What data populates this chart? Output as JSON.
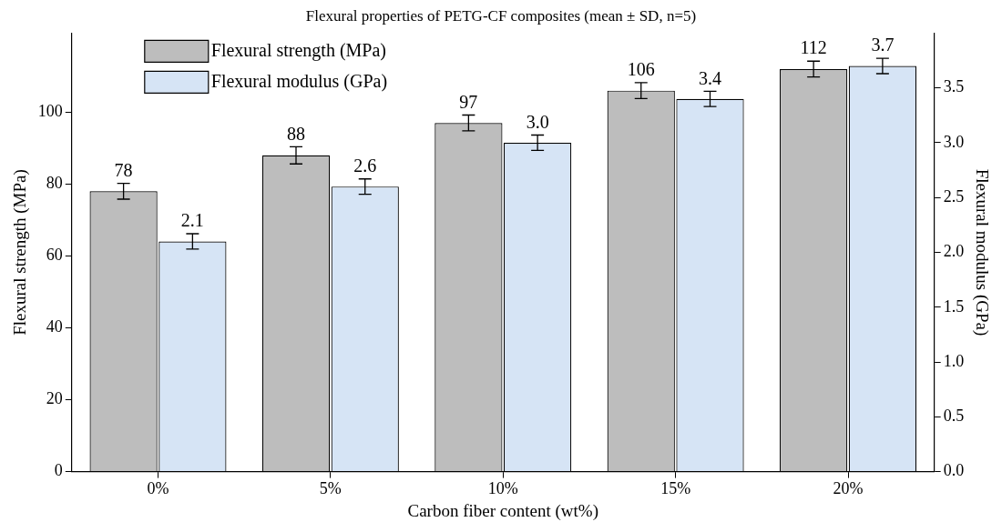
{
  "chart_data": {
    "type": "bar",
    "title": "Flexural properties of PETG-CF composites (mean ± SD, n=5)",
    "xlabel": "Carbon fiber content (wt%)",
    "ylabel": "Flexural strength (MPa)",
    "y2label": "Flexural modulus (GPa)",
    "categories": [
      "0%",
      "5%",
      "10%",
      "15%",
      "20%"
    ],
    "series": [
      {
        "name": "Flexural strength (MPa)",
        "color": "#bdbdbd",
        "values": [
          78,
          88,
          97,
          106,
          112
        ],
        "errors": [
          2.2,
          2.4,
          2.2,
          2.2,
          2.2
        ],
        "value_labels": [
          "78",
          "88",
          "97",
          "106",
          "112"
        ]
      },
      {
        "name": "Flexural modulus (GPa)",
        "color": "#d6e4f5",
        "axis": "y2",
        "values": [
          2.1,
          2.6,
          3.0,
          3.4,
          3.7
        ],
        "errors": [
          0.07,
          0.07,
          0.07,
          0.07,
          0.07
        ],
        "value_labels": [
          "2.1",
          "2.6",
          "3.0",
          "3.4",
          "3.7"
        ]
      }
    ],
    "ylim": [
      0,
      122
    ],
    "yticks": [
      0,
      20,
      40,
      60,
      80,
      100
    ],
    "y2lim": [
      0,
      4
    ],
    "y2ticks": [
      {
        "value": 0,
        "label": "0.0"
      },
      0.5,
      {
        "value": 1,
        "label": "1.0"
      },
      1.5,
      {
        "value": 2,
        "label": "2.0"
      },
      2.5,
      {
        "value": 3,
        "label": "3.0"
      },
      3.5
    ],
    "grid": false,
    "legend": "top left"
  }
}
